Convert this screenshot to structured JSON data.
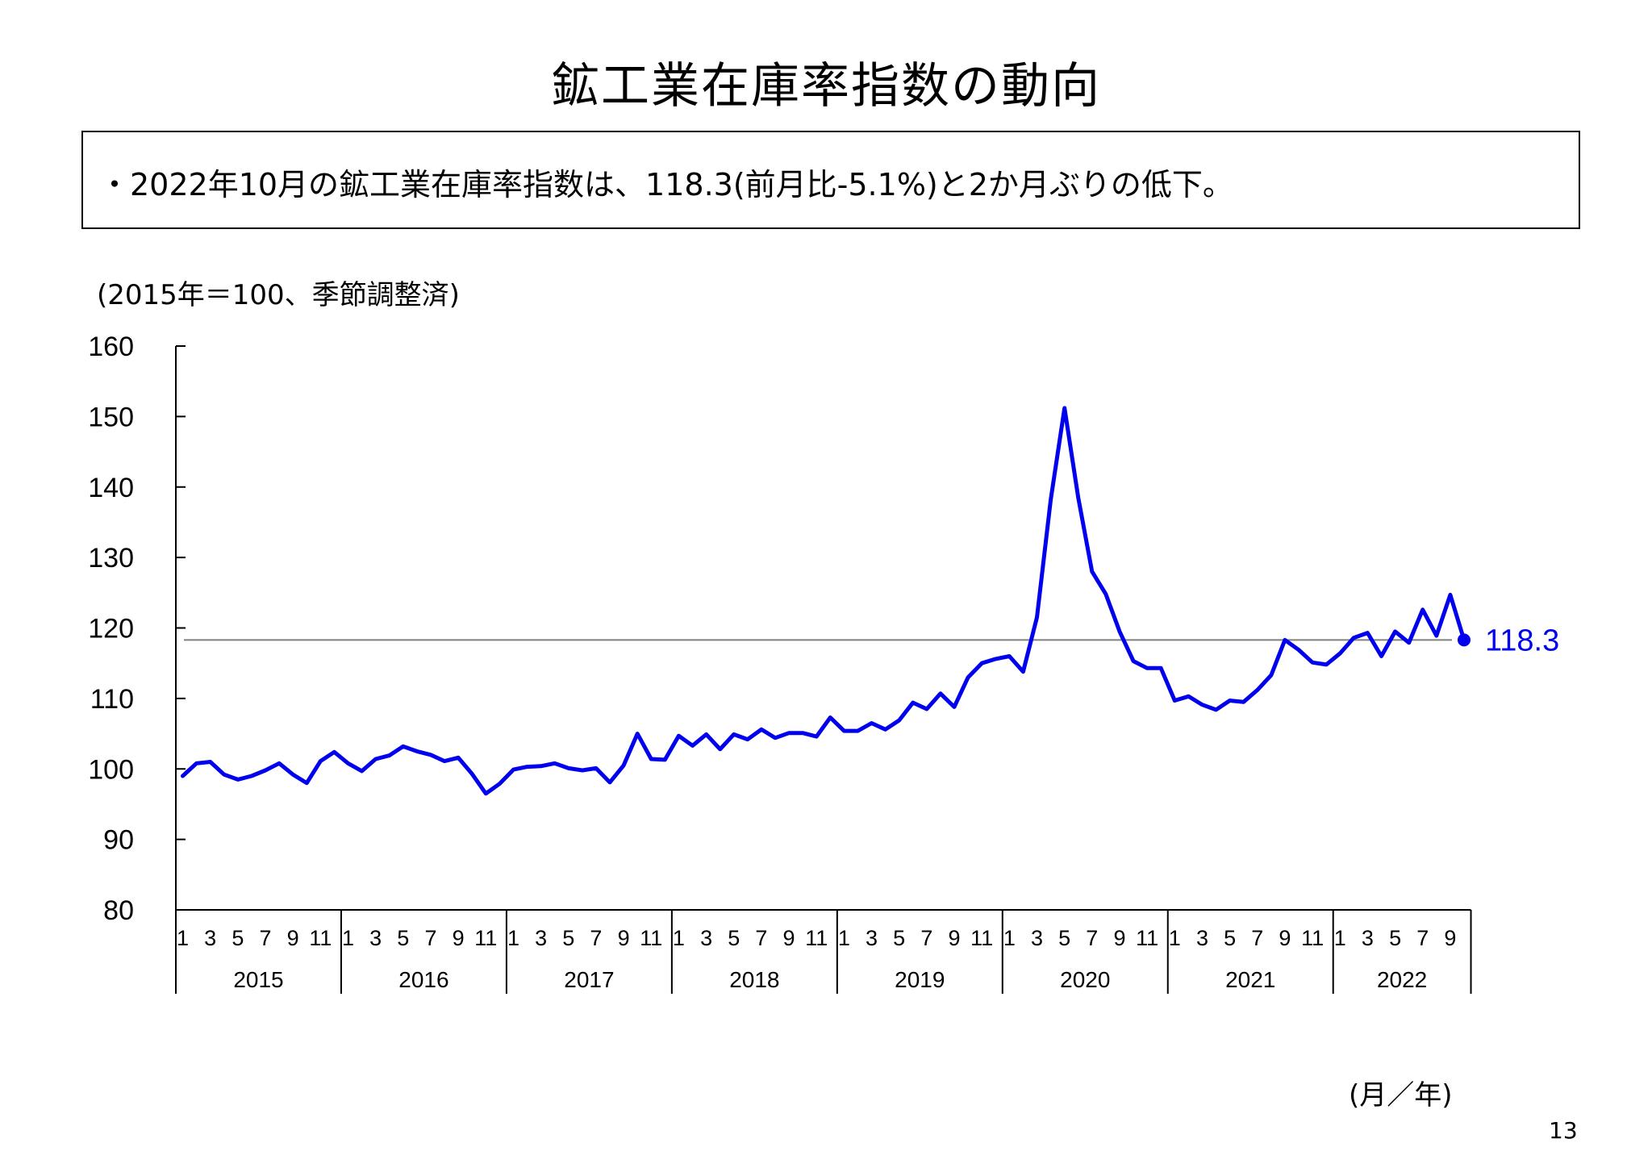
{
  "page": {
    "title": "鉱工業在庫率指数の動向",
    "summary": "・2022年10月の鉱工業在庫率指数は、118.3(前月比-5.1%)と2か月ぶりの低下。",
    "unit_note": "(2015年＝100、季節調整済)",
    "x_axis_note": "(月／年)",
    "page_number": "13",
    "end_label": "118.3"
  },
  "colors": {
    "series": "#0000ee",
    "reference_line": "#808080",
    "axis": "#000000"
  },
  "chart_data": {
    "type": "line",
    "title": "",
    "xlabel": "(月／年)",
    "ylabel": "",
    "ylim": [
      80,
      160
    ],
    "y_ticks": [
      80,
      90,
      100,
      110,
      120,
      130,
      140,
      150,
      160
    ],
    "years": [
      "2015",
      "2016",
      "2017",
      "2018",
      "2019",
      "2020",
      "2021",
      "2022"
    ],
    "month_tick_labels": [
      "1",
      "3",
      "5",
      "7",
      "9",
      "11"
    ],
    "month_tick_labels_2022": [
      "1",
      "3",
      "5",
      "7",
      "9"
    ],
    "reference_line": 118.3,
    "grid": false,
    "legend": "none",
    "series": [
      {
        "values": [
          99.0,
          100.8,
          101.0,
          99.2,
          98.5,
          99.0,
          99.8,
          100.8,
          99.2,
          98.0,
          101.1,
          102.4,
          100.8,
          99.7,
          101.4,
          101.9,
          103.2,
          102.5,
          102.0,
          101.1,
          101.6,
          99.3,
          96.5,
          97.9,
          99.9,
          100.3,
          100.4,
          100.8,
          100.1,
          99.8,
          100.1,
          98.1,
          100.5,
          105.0,
          101.4,
          101.3,
          104.7,
          103.3,
          104.9,
          102.8,
          104.9,
          104.2,
          105.6,
          104.4,
          105.1,
          105.1,
          104.6,
          107.3,
          105.4,
          105.4,
          106.5,
          105.6,
          106.9,
          109.4,
          108.5,
          110.7,
          108.8,
          113.0,
          115.0,
          115.6,
          116.0,
          113.8,
          121.5,
          138.2,
          151.2,
          138.5,
          128.0,
          124.8,
          119.5,
          115.3,
          114.3,
          114.3,
          109.7,
          110.3,
          109.1,
          108.4,
          109.7,
          109.5,
          111.2,
          113.3,
          118.3,
          116.9,
          115.1,
          114.8,
          116.4,
          118.6,
          119.3,
          116.0,
          119.5,
          117.9,
          122.6,
          118.9,
          124.7,
          118.3
        ]
      }
    ]
  }
}
